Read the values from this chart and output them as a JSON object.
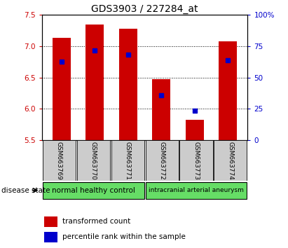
{
  "title": "GDS3903 / 227284_at",
  "samples": [
    "GSM663769",
    "GSM663770",
    "GSM663771",
    "GSM663772",
    "GSM663773",
    "GSM663774"
  ],
  "bar_tops": [
    7.13,
    7.35,
    7.28,
    6.47,
    5.82,
    7.08
  ],
  "bar_bottom": 5.5,
  "blue_values": [
    6.75,
    6.93,
    6.87,
    6.22,
    5.97,
    6.78
  ],
  "ylim_left": [
    5.5,
    7.5
  ],
  "yticks_left": [
    5.5,
    6.0,
    6.5,
    7.0,
    7.5
  ],
  "yticks_right": [
    0,
    25,
    50,
    75,
    100
  ],
  "yticklabels_right": [
    "0",
    "25",
    "50",
    "75",
    "100%"
  ],
  "bar_color": "#cc0000",
  "blue_color": "#0000cc",
  "group1_label": "normal healthy control",
  "group2_label": "intracranial arterial aneurysm",
  "group_color": "#66dd66",
  "sample_box_color": "#cccccc",
  "legend_red_label": "transformed count",
  "legend_blue_label": "percentile rank within the sample",
  "disease_state_label": "disease state",
  "title_fontsize": 10,
  "tick_fontsize": 7.5,
  "bar_width": 0.55
}
